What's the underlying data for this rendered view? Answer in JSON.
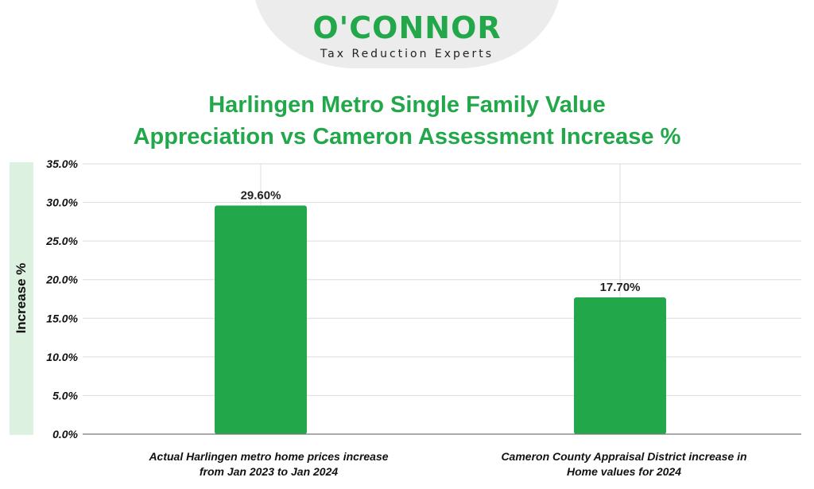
{
  "logo": {
    "name": "O'CONNOR",
    "tagline": "Tax Reduction Experts"
  },
  "colors": {
    "brand_green": "#22a84a",
    "bar_green": "#22a84a",
    "ylabel_band": "#dcf1df"
  },
  "chart_data": {
    "type": "bar",
    "title": "Harlingen Metro Single Family Value Appreciation vs Cameron Assessment Increase %",
    "title_lines": [
      "Harlingen Metro Single Family Value",
      "Appreciation vs Cameron Assessment Increase %"
    ],
    "ylabel": "Increase %",
    "xlabel": "",
    "ylim": [
      0,
      35
    ],
    "yticks": [
      0,
      5,
      10,
      15,
      20,
      25,
      30,
      35
    ],
    "ytick_labels": [
      "0.0%",
      "5.0%",
      "10.0%",
      "15.0%",
      "20.0%",
      "25.0%",
      "30.0%",
      "35.0%"
    ],
    "categories": [
      "Actual Harlingen metro home prices increase from Jan 2023 to Jan 2024",
      "Cameron County Appraisal District increase in Home values for 2024"
    ],
    "category_lines": [
      [
        "Actual Harlingen metro home prices increase",
        "from Jan 2023 to Jan 2024"
      ],
      [
        "Cameron County Appraisal District increase in",
        "Home values for 2024"
      ]
    ],
    "values": [
      29.6,
      17.7
    ],
    "data_labels": [
      "29.60%",
      "17.70%"
    ],
    "grid": true
  }
}
